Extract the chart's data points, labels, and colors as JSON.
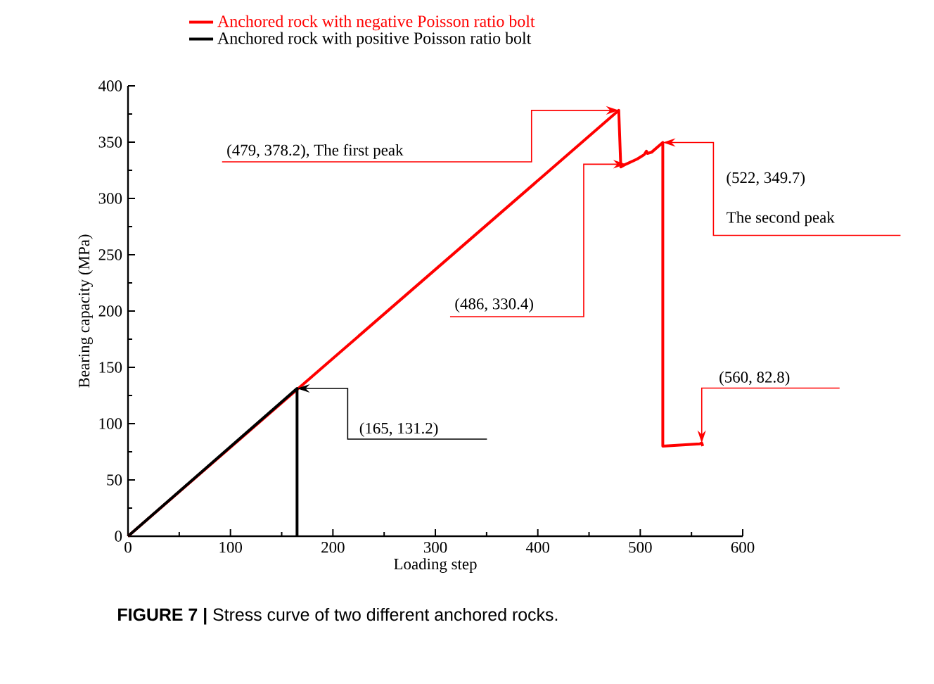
{
  "chart_data": {
    "type": "line",
    "xlabel": "Loading step",
    "ylabel": "Bearing capacity (MPa)",
    "series": [
      {
        "name": "Anchored rock with negative Poisson ratio bolt",
        "color": "#ff0000",
        "x": [
          0,
          479,
          481,
          486,
          497,
          504,
          506,
          507,
          511,
          522,
          522,
          558,
          560,
          561
        ],
        "values": [
          0,
          378.2,
          328,
          330.4,
          335,
          339,
          342,
          340,
          341,
          349.7,
          80,
          82,
          82.8,
          80
        ]
      },
      {
        "name": "Anchored rock with positive  Poisson ratio bolt",
        "color": "#000000",
        "x": [
          0,
          165,
          165
        ],
        "values": [
          0,
          131.2,
          0
        ]
      }
    ],
    "xlim": [
      0,
      600
    ],
    "xticks": [
      0,
      100,
      200,
      300,
      400,
      500,
      600
    ],
    "ylim": [
      0,
      400
    ],
    "yticks": [
      0,
      50,
      100,
      150,
      200,
      250,
      300,
      350,
      400
    ],
    "grid": false,
    "legend": "top",
    "marker": "none",
    "line_style": "solid",
    "annotations": [
      {
        "text": "(479, 378.2), The first peak",
        "x": 479,
        "y": 378.2
      },
      {
        "text": "(486, 330.4)",
        "x": 486,
        "y": 330.4
      },
      "(522, 349.7)",
      {
        "text": "The second peak",
        "x": 522,
        "y": 349.7
      },
      {
        "text": "(560, 82.8)",
        "x": 560,
        "y": 82.8
      },
      {
        "text": "(165, 131.2)",
        "x": 165,
        "y": 131.2
      },
      "**FIGURE 7 |** Stress curve of two different anchored rocks."
    ]
  }
}
